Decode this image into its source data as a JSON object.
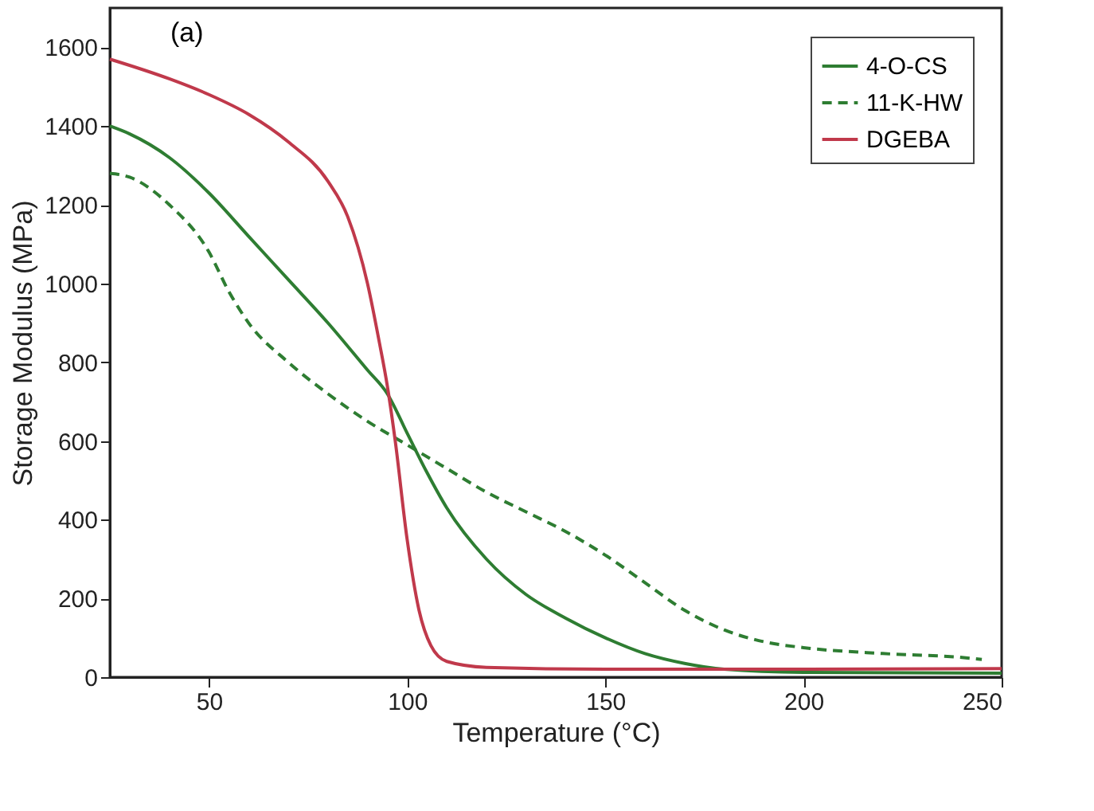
{
  "chart_data": {
    "type": "line",
    "xlabel": "Temperature (°C)",
    "ylabel": "Storage Modulus (MPa)",
    "annotations": [
      "(a)"
    ],
    "xlim": [
      25,
      250
    ],
    "xticks": [
      50,
      100,
      150,
      200,
      250
    ],
    "ylim": [
      0,
      1700
    ],
    "yticks": [
      0,
      200,
      400,
      600,
      800,
      1000,
      1200,
      1400,
      1600
    ],
    "grid": false,
    "legend": "top right",
    "marker": "none",
    "series": [
      {
        "name": "4-O-CS",
        "color": "#2e7d32",
        "line_style": "solid",
        "x": [
          25,
          30,
          40,
          50,
          60,
          70,
          80,
          90,
          95,
          100,
          105,
          110,
          120,
          130,
          140,
          150,
          160,
          170,
          180,
          200,
          250
        ],
        "values": [
          1400,
          1380,
          1320,
          1230,
          1120,
          1010,
          900,
          780,
          720,
          620,
          520,
          430,
          300,
          210,
          150,
          100,
          60,
          35,
          20,
          12,
          10
        ]
      },
      {
        "name": "11-K-HW",
        "color": "#2e7d32",
        "line_style": "dashed",
        "x": [
          25,
          30,
          40,
          50,
          55,
          60,
          70,
          80,
          90,
          100,
          110,
          120,
          130,
          140,
          150,
          160,
          170,
          180,
          190,
          200,
          220,
          240,
          245
        ],
        "values": [
          1280,
          1270,
          1200,
          1080,
          980,
          900,
          800,
          720,
          650,
          590,
          530,
          470,
          420,
          370,
          310,
          240,
          170,
          120,
          90,
          75,
          60,
          50,
          45
        ]
      },
      {
        "name": "DGEBA",
        "color": "#c0394b",
        "line_style": "solid",
        "x": [
          25,
          40,
          50,
          60,
          70,
          80,
          85,
          90,
          93,
          95,
          97,
          100,
          103,
          106,
          110,
          120,
          150,
          200,
          250
        ],
        "values": [
          1570,
          1520,
          1480,
          1430,
          1360,
          1260,
          1170,
          1000,
          850,
          740,
          600,
          350,
          170,
          80,
          40,
          25,
          20,
          20,
          22
        ]
      }
    ]
  }
}
